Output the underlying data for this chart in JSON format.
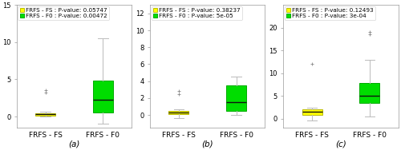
{
  "subplots": [
    {
      "label": "(a)",
      "legend_fs_label": "FRFS - FS : P-value: 0.05747",
      "legend_f0_label": "FRFS - F0 : P-value: 0.00472",
      "ylim": [
        -1.5,
        15
      ],
      "yticks": [
        0,
        5,
        10,
        15
      ],
      "fs_box": {
        "median": 0.3,
        "q1": 0.15,
        "q3": 0.45,
        "whislo": 0.0,
        "whishi": 0.6,
        "fliers": [
          3.2,
          3.5
        ]
      },
      "f0_box": {
        "median": 2.3,
        "q1": 0.5,
        "q3": 4.8,
        "whislo": -1.0,
        "whishi": 10.5,
        "fliers": []
      }
    },
    {
      "label": "(b)",
      "legend_fs_label": "FRFS - FS : P-value: 0.38237",
      "legend_f0_label": "FRFS - F0 : P-value: 5e-05",
      "ylim": [
        -1.5,
        13
      ],
      "yticks": [
        0,
        2,
        4,
        6,
        8,
        10,
        12
      ],
      "fs_box": {
        "median": 0.3,
        "q1": 0.1,
        "q3": 0.5,
        "whislo": -0.4,
        "whishi": 0.7,
        "fliers": [
          2.5,
          2.8
        ]
      },
      "f0_box": {
        "median": 1.5,
        "q1": 0.5,
        "q3": 3.5,
        "whislo": 0.0,
        "whishi": 4.5,
        "fliers": []
      }
    },
    {
      "label": "(c)",
      "legend_fs_label": "FRFS - FS : P-value: 0.12493",
      "legend_f0_label": "FRFS - F0 : P-value: 3e-04",
      "ylim": [
        -2,
        25
      ],
      "yticks": [
        0,
        5,
        10,
        15,
        20
      ],
      "fs_box": {
        "median": 1.5,
        "q1": 0.8,
        "q3": 2.1,
        "whislo": -0.5,
        "whishi": 2.4,
        "fliers": [
          12.0
        ]
      },
      "f0_box": {
        "median": 5.0,
        "q1": 3.5,
        "q3": 7.8,
        "whislo": 0.5,
        "whishi": 13.0,
        "fliers": [
          19.0,
          18.5
        ]
      }
    }
  ],
  "fs_color": "#ffff00",
  "f0_color": "#00dd00",
  "fs_edge_color": "#bbbb00",
  "f0_edge_color": "#00aa00",
  "median_color": "#111111",
  "whisker_color": "#bbbbbb",
  "cap_color": "#bbbbbb",
  "flier_color": "#888888",
  "bg_color": "#ffffff",
  "xlabel_fs": "FRFS - FS",
  "xlabel_f0": "FRFS - F0",
  "label_fontsize": 6.5,
  "legend_fontsize": 5.2,
  "tick_fontsize": 6,
  "box_width": 0.35
}
